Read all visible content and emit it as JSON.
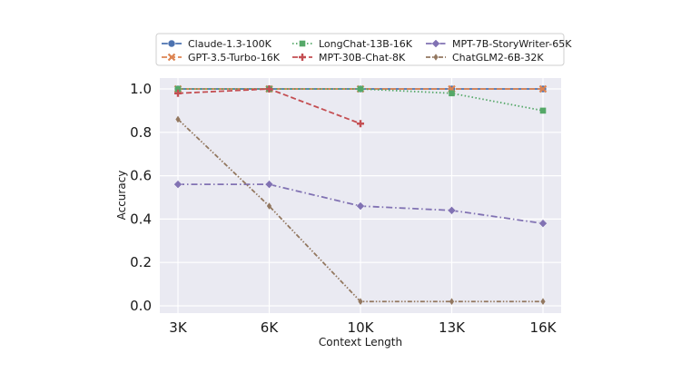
{
  "chart_data": {
    "type": "line",
    "xlabel": "Context Length",
    "ylabel": "Accuracy",
    "categories": [
      "3K",
      "6K",
      "10K",
      "13K",
      "16K"
    ],
    "x": [
      3,
      6,
      10,
      13,
      16
    ],
    "ylim": [
      0.0,
      1.0
    ],
    "yticks": [
      "0.0",
      "0.2",
      "0.4",
      "0.6",
      "0.8",
      "1.0"
    ],
    "grid": true,
    "legend_position": "top",
    "series": [
      {
        "name": "Claude-1.3-100K",
        "values": [
          1.0,
          1.0,
          1.0,
          1.0,
          1.0
        ],
        "color": "#4c72b0",
        "marker": "circle",
        "dash": "solid"
      },
      {
        "name": "GPT-3.5-Turbo-16K",
        "values": [
          1.0,
          1.0,
          1.0,
          1.0,
          1.0
        ],
        "color": "#dd8452",
        "marker": "x",
        "dash": "dashed"
      },
      {
        "name": "LongChat-13B-16K",
        "values": [
          1.0,
          1.0,
          1.0,
          0.98,
          0.9
        ],
        "color": "#55a868",
        "marker": "square",
        "dash": "dotted"
      },
      {
        "name": "MPT-30B-Chat-8K",
        "values": [
          0.98,
          1.0,
          0.84,
          null,
          null
        ],
        "color": "#c44e52",
        "marker": "plus",
        "dash": "dashed"
      },
      {
        "name": "MPT-7B-StoryWriter-65K",
        "values": [
          0.56,
          0.56,
          0.46,
          0.44,
          0.38
        ],
        "color": "#8172b3",
        "marker": "diamond",
        "dash": "dashdot"
      },
      {
        "name": "ChatGLM2-6B-32K",
        "values": [
          0.86,
          0.46,
          0.02,
          0.02,
          0.02
        ],
        "color": "#937860",
        "marker": "thin-diamond",
        "dash": "dashdotdot"
      }
    ]
  }
}
